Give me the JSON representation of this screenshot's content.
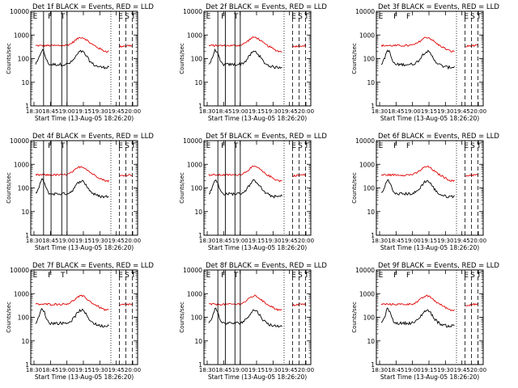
{
  "colors": {
    "events": "#000000",
    "lld": "#e00000",
    "background": "#ffffff"
  },
  "chart_data": [
    {
      "panel": "Det 1",
      "type": "line",
      "title": "Det 1f BLACK = Events, RED = LLD",
      "ylabel": "Counts/sec",
      "xlabel": "Start Time (13-Aug-05 18:26:20)",
      "y_scale": "log",
      "ylim": [
        1,
        10000
      ],
      "y_ticks": [
        "1",
        "10",
        "100",
        "1000",
        "10000"
      ],
      "x_ticks": [
        "18:30",
        "18:45",
        "19:00",
        "19:15",
        "19:30",
        "19:45",
        "20:00"
      ],
      "solid_markers": [
        0.12,
        0.19,
        0.29,
        0.34
      ],
      "dotted_markers": [
        0.75
      ],
      "dashed_markers": [
        0.83,
        0.89,
        0.95
      ],
      "flags": [
        "E",
        "F",
        "T",
        "E",
        "S",
        "T"
      ],
      "series": [
        {
          "name": "Events",
          "color": "#000000"
        },
        {
          "name": "LLD",
          "color": "#e00000"
        }
      ]
    },
    {
      "panel": "Det 2",
      "type": "line",
      "title": "Det 2f BLACK = Events, RED = LLD",
      "ylabel": "Counts/sec",
      "xlabel": "Start Time (13-Aug-05 18:26:20)",
      "y_scale": "log",
      "ylim": [
        1,
        10000
      ],
      "y_ticks": [
        "1",
        "10",
        "100",
        "1000",
        "10000"
      ],
      "x_ticks": [
        "18:30",
        "18:45",
        "19:00",
        "19:15",
        "19:30",
        "19:45",
        "20:00"
      ],
      "solid_markers": [
        0.13,
        0.2,
        0.29,
        0.34
      ],
      "dotted_markers": [
        0.75
      ],
      "dashed_markers": [
        0.83,
        0.89,
        0.95
      ],
      "flags": [
        "E",
        "F",
        "T",
        "E",
        "S",
        "T"
      ],
      "series": [
        {
          "name": "Events",
          "color": "#000000"
        },
        {
          "name": "LLD",
          "color": "#e00000"
        }
      ]
    },
    {
      "panel": "Det 3",
      "type": "line",
      "title": "Det 3f BLACK = Events, RED = LLD",
      "ylabel": "Counts/sec",
      "xlabel": "Start Time (13-Aug-05 18:26:20)",
      "y_scale": "log",
      "ylim": [
        1,
        10000
      ],
      "y_ticks": [
        "1",
        "10",
        "100",
        "1000",
        "10000"
      ],
      "x_ticks": [
        "18:30",
        "18:45",
        "19:00",
        "19:15",
        "19:30",
        "19:45",
        "20:00"
      ],
      "solid_markers": [],
      "dotted_markers": [
        0.75
      ],
      "dashed_markers": [
        0.83,
        0.89,
        0.95
      ],
      "flags": [
        "E",
        "F",
        "F",
        "E",
        "S",
        "T"
      ],
      "series": [
        {
          "name": "Events",
          "color": "#000000"
        },
        {
          "name": "LLD",
          "color": "#e00000"
        }
      ]
    },
    {
      "panel": "Det 4",
      "type": "line",
      "title": "Det 4f BLACK = Events, RED = LLD",
      "ylabel": "Counts/sec",
      "xlabel": "Start Time (13-Aug-05 18:26:20)",
      "y_scale": "log",
      "ylim": [
        1,
        10000
      ],
      "y_ticks": [
        "1",
        "10",
        "100",
        "1000",
        "10000"
      ],
      "x_ticks": [
        "18:30",
        "18:45",
        "19:00",
        "19:15",
        "19:30",
        "19:45",
        "20:00"
      ],
      "solid_markers": [
        0.12,
        0.19,
        0.29,
        0.34
      ],
      "dotted_markers": [
        0.75
      ],
      "dashed_markers": [
        0.83,
        0.89,
        0.95
      ],
      "flags": [
        "E",
        "F",
        "T",
        "E",
        "S",
        "T"
      ],
      "series": [
        {
          "name": "Events",
          "color": "#000000"
        },
        {
          "name": "LLD",
          "color": "#e00000"
        }
      ]
    },
    {
      "panel": "Det 5",
      "type": "line",
      "title": "Det 5f BLACK = Events, RED = LLD",
      "ylabel": "Counts/sec",
      "xlabel": "Start Time (13-Aug-05 18:26:20)",
      "y_scale": "log",
      "ylim": [
        1,
        10000
      ],
      "y_ticks": [
        "1",
        "10",
        "100",
        "1000",
        "10000"
      ],
      "x_ticks": [
        "18:30",
        "18:45",
        "19:00",
        "19:15",
        "19:30",
        "19:45",
        "20:00"
      ],
      "solid_markers": [
        0.13,
        0.2,
        0.29,
        0.34
      ],
      "dotted_markers": [
        0.75
      ],
      "dashed_markers": [
        0.83,
        0.89,
        0.95
      ],
      "flags": [
        "E",
        "F",
        "T",
        "E",
        "S",
        "T"
      ],
      "series": [
        {
          "name": "Events",
          "color": "#000000"
        },
        {
          "name": "LLD",
          "color": "#e00000"
        }
      ]
    },
    {
      "panel": "Det 6",
      "type": "line",
      "title": "Det 6f BLACK = Events, RED = LLD",
      "ylabel": "Counts/sec",
      "xlabel": "Start Time (13-Aug-05 18:26:20)",
      "y_scale": "log",
      "ylim": [
        1,
        10000
      ],
      "y_ticks": [
        "1",
        "10",
        "100",
        "1000",
        "10000"
      ],
      "x_ticks": [
        "18:30",
        "18:45",
        "19:00",
        "19:15",
        "19:30",
        "19:45",
        "20:00"
      ],
      "solid_markers": [],
      "dotted_markers": [
        0.75
      ],
      "dashed_markers": [
        0.83,
        0.89,
        0.95
      ],
      "flags": [
        "E",
        "F",
        "F",
        "E",
        "S",
        "T"
      ],
      "series": [
        {
          "name": "Events",
          "color": "#000000"
        },
        {
          "name": "LLD",
          "color": "#e00000"
        }
      ]
    },
    {
      "panel": "Det 7",
      "type": "line",
      "title": "Det 7f BLACK = Events, RED = LLD",
      "ylabel": "Counts/sec",
      "xlabel": "Start Time (13-Aug-05 18:26:20)",
      "y_scale": "log",
      "ylim": [
        1,
        10000
      ],
      "y_ticks": [
        "1",
        "10",
        "100",
        "1000",
        "10000"
      ],
      "x_ticks": [
        "18:30",
        "18:45",
        "19:00",
        "19:15",
        "19:30",
        "19:45",
        "20:00"
      ],
      "solid_markers": [],
      "dotted_markers": [
        0.75
      ],
      "dashed_markers": [
        0.83,
        0.89,
        0.95
      ],
      "flags": [
        "E",
        "F",
        "T",
        "E",
        "S",
        "T"
      ],
      "series": [
        {
          "name": "Events",
          "color": "#000000"
        },
        {
          "name": "LLD",
          "color": "#e00000"
        }
      ]
    },
    {
      "panel": "Det 8",
      "type": "line",
      "title": "Det 8f BLACK = Events, RED = LLD",
      "ylabel": "Counts/sec",
      "xlabel": "Start Time (13-Aug-05 18:26:20)",
      "y_scale": "log",
      "ylim": [
        1,
        10000
      ],
      "y_ticks": [
        "1",
        "10",
        "100",
        "1000",
        "10000"
      ],
      "x_ticks": [
        "18:30",
        "18:45",
        "19:00",
        "19:15",
        "19:30",
        "19:45",
        "20:00"
      ],
      "solid_markers": [
        0.13,
        0.2,
        0.29,
        0.34
      ],
      "dotted_markers": [
        0.75
      ],
      "dashed_markers": [
        0.83,
        0.89,
        0.95
      ],
      "flags": [
        "E",
        "F",
        "T",
        "E",
        "S",
        "T"
      ],
      "series": [
        {
          "name": "Events",
          "color": "#000000"
        },
        {
          "name": "LLD",
          "color": "#e00000"
        }
      ]
    },
    {
      "panel": "Det 9",
      "type": "line",
      "title": "Det 9f BLACK = Events, RED = LLD",
      "ylabel": "Counts/sec",
      "xlabel": "Start Time (13-Aug-05 18:26:20)",
      "y_scale": "log",
      "ylim": [
        1,
        10000
      ],
      "y_ticks": [
        "1",
        "10",
        "100",
        "1000",
        "10000"
      ],
      "x_ticks": [
        "18:30",
        "18:45",
        "19:00",
        "19:15",
        "19:30",
        "19:45",
        "20:00"
      ],
      "solid_markers": [],
      "dotted_markers": [
        0.75
      ],
      "dashed_markers": [
        0.83,
        0.89,
        0.95
      ],
      "flags": [
        "E",
        "F",
        "F",
        "E",
        "S",
        "T"
      ],
      "series": [
        {
          "name": "Events",
          "color": "#000000"
        },
        {
          "name": "LLD",
          "color": "#e00000"
        }
      ]
    }
  ]
}
